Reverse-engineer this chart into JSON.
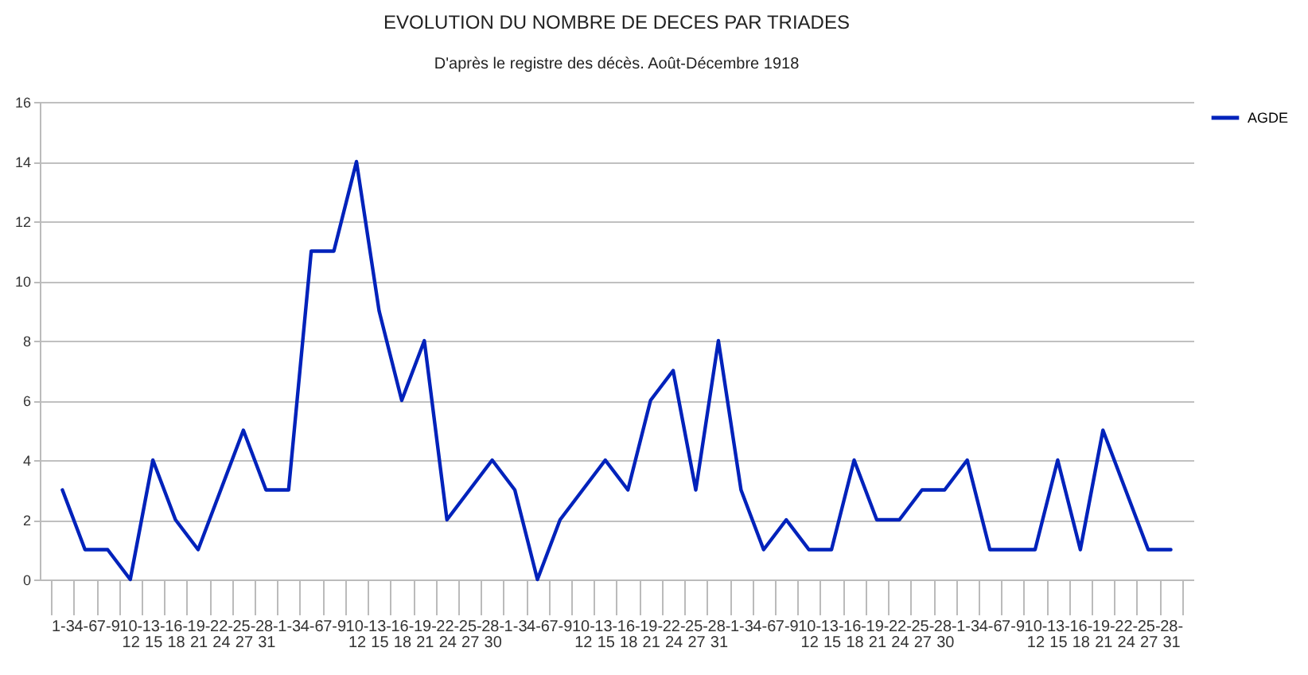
{
  "chart_data": {
    "type": "line",
    "title": "EVOLUTION DU NOMBRE DE DECES PAR TRIADES",
    "subtitle": "D'après le registre des décès. Août-Décembre 1918",
    "categories": [
      "1-3",
      "4-6",
      "7-9",
      "10-12",
      "13-15",
      "16-18",
      "19-21",
      "22-24",
      "25-27",
      "28-31",
      "1-3",
      "4-6",
      "7-9",
      "10-12",
      "13-15",
      "16-18",
      "19-21",
      "22-24",
      "25-27",
      "28-30",
      "1-3",
      "4-6",
      "7-9",
      "10-12",
      "13-15",
      "16-18",
      "19-21",
      "22-24",
      "25-27",
      "28-31",
      "1-3",
      "4-6",
      "7-9",
      "10-12",
      "13-15",
      "16-18",
      "19-21",
      "22-24",
      "25-27",
      "28-30",
      "1-3",
      "4-6",
      "7-9",
      "10-12",
      "13-15",
      "16-18",
      "19-21",
      "22-24",
      "25-27",
      "28-31"
    ],
    "series": [
      {
        "name": "AGDE",
        "color": "#0022bb",
        "values": [
          3,
          1,
          1,
          0,
          4,
          2,
          1,
          3,
          5,
          3,
          3,
          11,
          11,
          14,
          9,
          6,
          8,
          2,
          3,
          4,
          3,
          0,
          2,
          3,
          4,
          3,
          6,
          7,
          3,
          8,
          3,
          1,
          2,
          1,
          1,
          4,
          2,
          2,
          3,
          3,
          4,
          1,
          1,
          1,
          4,
          1,
          5,
          3,
          1,
          1
        ]
      }
    ],
    "ylim": [
      0,
      16
    ],
    "yticks": [
      0,
      2,
      4,
      6,
      8,
      10,
      12,
      14,
      16
    ],
    "grid": "y",
    "legend": "right",
    "marker": "none",
    "line_style": "solid"
  }
}
